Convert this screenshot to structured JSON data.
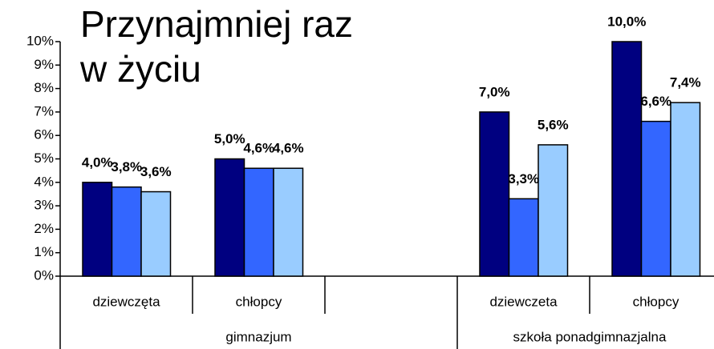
{
  "chart_data": {
    "type": "bar",
    "title": [
      "Przynajmniej raz",
      "w życiu"
    ],
    "groups": [
      {
        "name": "gimnazjum",
        "categories": [
          "dziewczęta",
          "chłopcy",
          null
        ]
      },
      {
        "name": "szkoła ponadgimnazjalna",
        "categories": [
          "dziewczeta",
          "chłopcy"
        ]
      }
    ],
    "series": [
      {
        "color": "#000080",
        "values": [
          4.0,
          5.0,
          null,
          7.0,
          10.0
        ],
        "value_labels": [
          "4,0%",
          "5,0%",
          null,
          "7,0%",
          "10,0%"
        ]
      },
      {
        "color": "#3366ff",
        "values": [
          3.8,
          4.6,
          null,
          3.3,
          6.6
        ],
        "value_labels": [
          "3,8%",
          "4,6%",
          null,
          "3,3%",
          "6,6%"
        ]
      },
      {
        "color": "#99ccff",
        "values": [
          3.6,
          4.6,
          null,
          5.6,
          7.4
        ],
        "value_labels": [
          "3,6%",
          "4,6%",
          null,
          "5,6%",
          "7,4%"
        ]
      }
    ],
    "ylim": [
      0,
      10
    ],
    "yticks": [
      {
        "value": 0,
        "label": "0%"
      },
      {
        "value": 1,
        "label": "1%"
      },
      {
        "value": 2,
        "label": "2%"
      },
      {
        "value": 3,
        "label": "3%"
      },
      {
        "value": 4,
        "label": "4%"
      },
      {
        "value": 5,
        "label": "5%"
      },
      {
        "value": 6,
        "label": "6%"
      },
      {
        "value": 7,
        "label": "7%"
      },
      {
        "value": 8,
        "label": "8%"
      },
      {
        "value": 9,
        "label": "9%"
      },
      {
        "value": 10,
        "label": "10%"
      }
    ],
    "grid": false
  }
}
